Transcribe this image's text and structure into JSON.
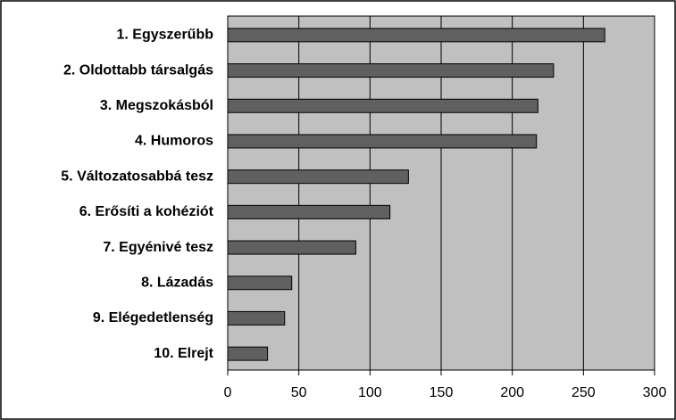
{
  "chart_data": {
    "type": "bar",
    "orientation": "horizontal",
    "categories": [
      "1. Egyszerűbb",
      "2. Oldottabb társalgás",
      "3. Megszokásból",
      "4. Humoros",
      "5. Változatosabbá tesz",
      "6. Erősíti a kohéziót",
      "7. Egyénivé tesz",
      "8. Lázadás",
      "9. Elégedetlenség",
      "10. Elrejt"
    ],
    "values": [
      265,
      229,
      218,
      217,
      127,
      114,
      90,
      45,
      40,
      28
    ],
    "color": "#606060",
    "xlim": [
      0,
      300
    ],
    "xticks": [
      0,
      50,
      100,
      150,
      200,
      250,
      300
    ],
    "grid": true
  }
}
